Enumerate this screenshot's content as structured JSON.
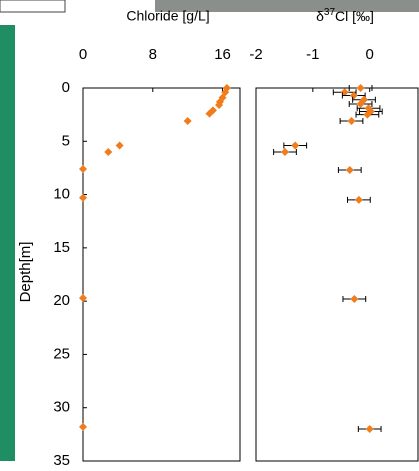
{
  "chart_data": [
    {
      "type": "scatter",
      "xlabel": "Chloride [g/L]",
      "ylabel": "Depth[m]",
      "x": [
        16.5,
        16.3,
        16.0,
        15.7,
        15.6,
        14.9,
        14.5,
        12.0,
        4.2,
        2.9,
        0,
        0,
        0,
        0
      ],
      "y": [
        0.0,
        0.4,
        0.9,
        1.3,
        1.6,
        2.1,
        2.4,
        3.1,
        5.4,
        6.0,
        7.6,
        10.3,
        19.7,
        31.8
      ],
      "color": "#f07c1b",
      "xlim": [
        0,
        18
      ],
      "xticks": [
        0,
        8,
        16
      ],
      "ylim": [
        0,
        35
      ],
      "yticks": [
        0,
        5,
        10,
        15,
        20,
        25,
        30,
        35
      ]
    },
    {
      "type": "errorbar",
      "xlabel_symbol": "δ",
      "xlabel_sup": "37",
      "xlabel_rest": "Cl [‰]",
      "x": [
        -0.16,
        -0.44,
        -0.28,
        -0.1,
        -0.16,
        -0.02,
        0.02,
        -0.04,
        -0.32,
        -1.31,
        -1.49,
        -0.35,
        -0.19,
        -0.27,
        0.0
      ],
      "xerr": [
        0.2,
        0.2,
        0.2,
        0.2,
        0.2,
        0.2,
        0.2,
        0.2,
        0.2,
        0.2,
        0.2,
        0.2,
        0.2,
        0.2,
        0.2
      ],
      "y": [
        0.0,
        0.4,
        0.7,
        1.1,
        1.5,
        1.9,
        2.2,
        2.5,
        3.1,
        5.4,
        6.0,
        7.7,
        10.5,
        19.8,
        32.0
      ],
      "color": "#f07c1b",
      "xlim": [
        -2,
        0.85
      ],
      "xticks": [
        -2,
        -1,
        0
      ],
      "ylim": [
        0,
        35
      ]
    }
  ]
}
